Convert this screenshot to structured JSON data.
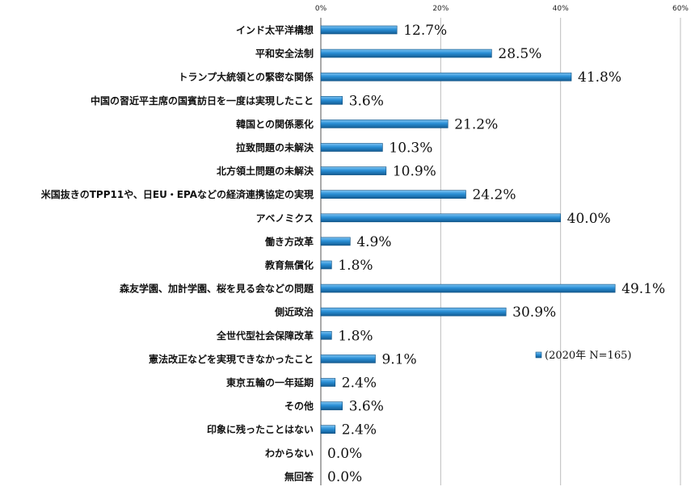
{
  "chart_data": {
    "type": "bar",
    "orientation": "horizontal",
    "categories": [
      "インド太平洋構想",
      "平和安全法制",
      "トランプ大統領との緊密な関係",
      "中国の習近平主席の国賓訪日を一度は実現したこと",
      "韓国との関係悪化",
      "拉致問題の未解決",
      "北方領土問題の未解決",
      "米国抜きのTPP11や、日EU・EPAなどの経済連携協定の実現",
      "アベノミクス",
      "働き方改革",
      "教育無償化",
      "森友学園、加計学園、桜を見る会などの問題",
      "側近政治",
      "全世代型社会保障改革",
      "憲法改正などを実現できなかったこと",
      "東京五輪の一年延期",
      "その他",
      "印象に残ったことはない",
      "わからない",
      "無回答"
    ],
    "series": [
      {
        "name": "(2020年 N=165)",
        "values": [
          12.7,
          28.5,
          41.8,
          3.6,
          21.2,
          10.3,
          10.9,
          24.2,
          40.0,
          4.9,
          1.8,
          49.1,
          30.9,
          1.8,
          9.1,
          2.4,
          3.6,
          2.4,
          0.0,
          0.0
        ],
        "labels": [
          "12.7%",
          "28.5%",
          "41.8%",
          "3.6%",
          "21.2%",
          "10.3%",
          "10.9%",
          "24.2%",
          "40.0%",
          "4.9%",
          "1.8%",
          "49.1%",
          "30.9%",
          "1.8%",
          "9.1%",
          "2.4%",
          "3.6%",
          "2.4%",
          "0.0%",
          "0.0%"
        ],
        "color": "#1f86cf"
      }
    ],
    "xlim": [
      0,
      60
    ],
    "xticks": [
      "0%",
      "20%",
      "40%",
      "60%"
    ],
    "xtick_values": [
      0,
      20,
      40,
      60
    ],
    "xaxis_position": "top",
    "grid": true,
    "legend_position": "center-right",
    "title": "",
    "xlabel": "",
    "ylabel": ""
  }
}
